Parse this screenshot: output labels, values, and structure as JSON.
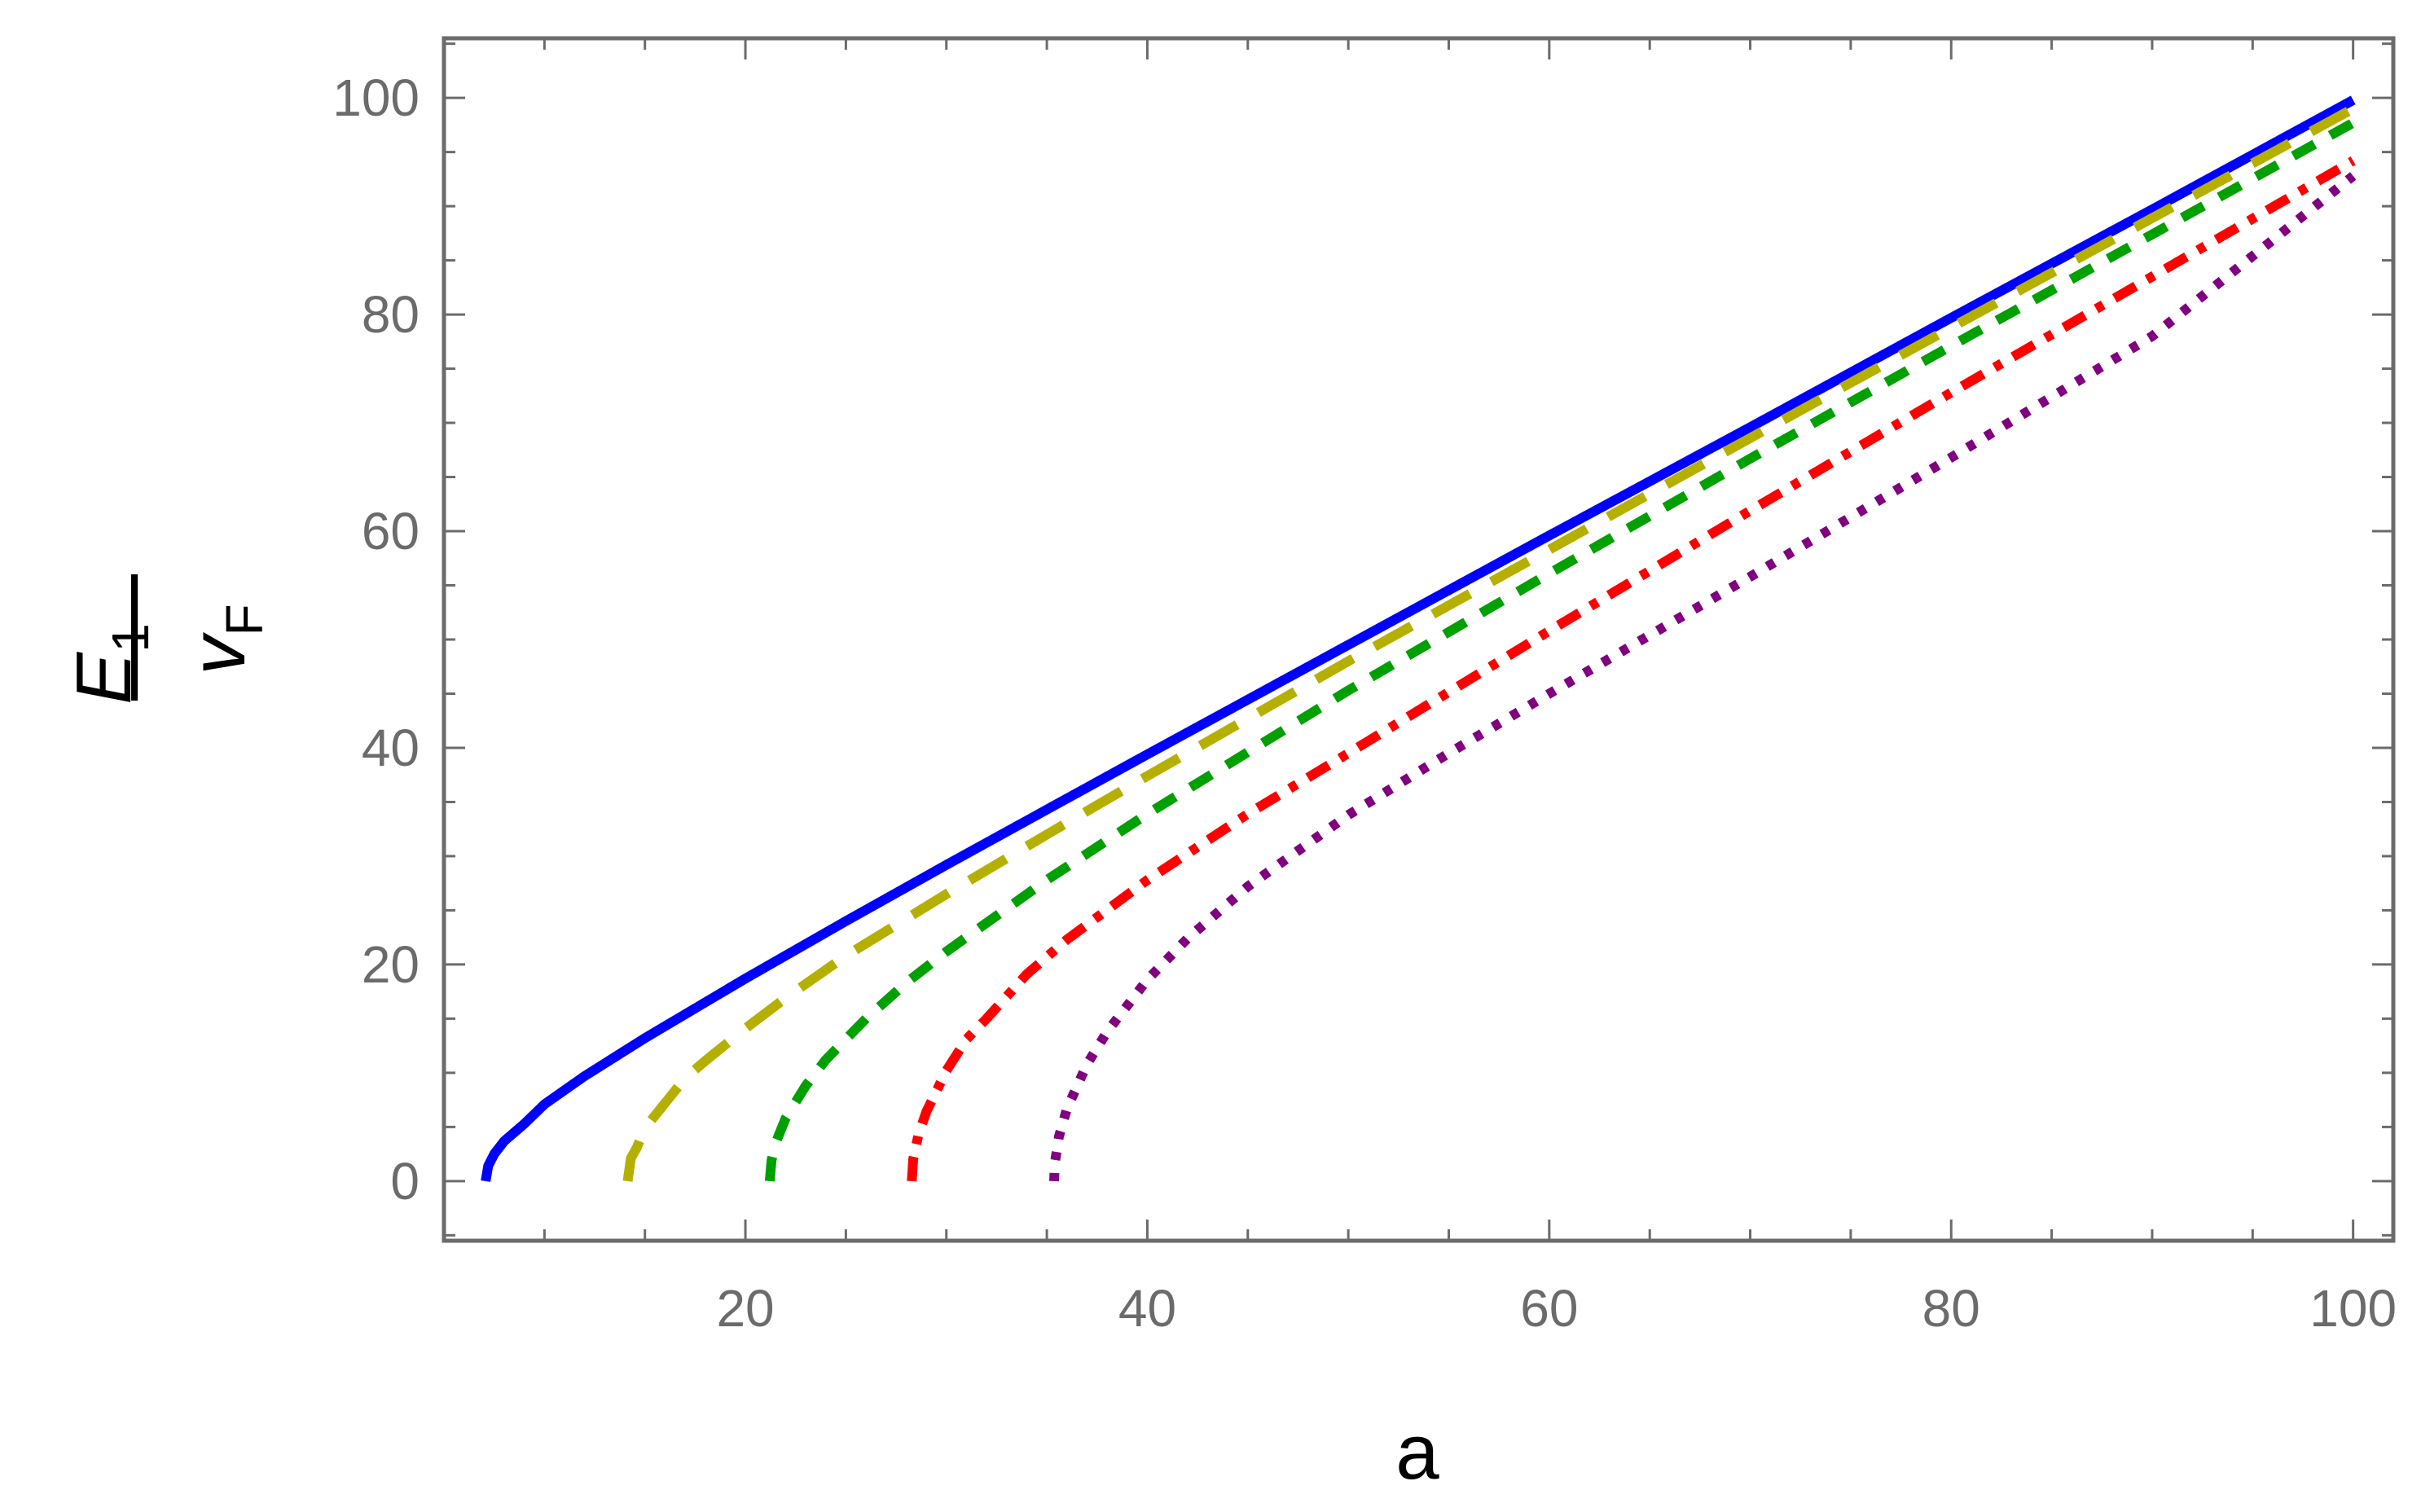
{
  "chart_data": {
    "type": "line",
    "title": "",
    "xlabel": "a",
    "ylabel": {
      "numerator_base": "E",
      "numerator_sub": "1",
      "denominator_base": "v",
      "denominator_sub": "F"
    },
    "xlim": [
      5,
      102
    ],
    "ylim": [
      -5.5,
      105.5
    ],
    "x_ticks": [
      "20",
      "40",
      "60",
      "80",
      "100"
    ],
    "y_ticks": [
      "0",
      "20",
      "40",
      "60",
      "80",
      "100"
    ],
    "x_tick_values": [
      20,
      40,
      60,
      80,
      100
    ],
    "y_tick_values": [
      0,
      20,
      40,
      60,
      80,
      100
    ],
    "grid": false,
    "frame": true,
    "legend": "none",
    "series": [
      {
        "color": "#0000ff",
        "style": "solid",
        "points": [
          [
            7.07,
            0
          ],
          [
            7.2,
            1.4
          ],
          [
            7.5,
            2.5
          ],
          [
            8,
            3.7
          ],
          [
            9,
            5.3
          ],
          [
            10,
            7.1
          ],
          [
            12,
            9.7
          ],
          [
            15,
            13.2
          ],
          [
            20,
            18.7
          ],
          [
            25,
            24.0
          ],
          [
            30,
            29.2
          ],
          [
            35,
            34.3
          ],
          [
            40,
            39.4
          ],
          [
            50,
            49.5
          ],
          [
            60,
            59.6
          ],
          [
            70,
            69.6
          ],
          [
            80,
            79.7
          ],
          [
            90,
            89.7
          ],
          [
            100,
            99.8
          ]
        ]
      },
      {
        "color": "#b5b000",
        "style": "long-dash",
        "points": [
          [
            14.14,
            0
          ],
          [
            14.3,
            2.1
          ],
          [
            14.6,
            3.1
          ],
          [
            15,
            4.9
          ],
          [
            16,
            7.2
          ],
          [
            17,
            9.5
          ],
          [
            18,
            11.1
          ],
          [
            20,
            14.1
          ],
          [
            22,
            16.9
          ],
          [
            25,
            20.8
          ],
          [
            30,
            26.5
          ],
          [
            35,
            32.0
          ],
          [
            40,
            37.4
          ],
          [
            50,
            48.0
          ],
          [
            60,
            58.3
          ],
          [
            70,
            68.6
          ],
          [
            80,
            78.8
          ],
          [
            90,
            88.9
          ],
          [
            100,
            99.0
          ]
        ]
      },
      {
        "color": "#00a000",
        "style": "dash",
        "points": [
          [
            21.21,
            0
          ],
          [
            21.3,
            1.9
          ],
          [
            21.5,
            3.5
          ],
          [
            22,
            5.8
          ],
          [
            23,
            8.8
          ],
          [
            24,
            11.2
          ],
          [
            26,
            15.0
          ],
          [
            28,
            18.3
          ],
          [
            30,
            21.2
          ],
          [
            35,
            27.8
          ],
          [
            40,
            33.9
          ],
          [
            45,
            39.6
          ],
          [
            50,
            45.3
          ],
          [
            60,
            56.1
          ],
          [
            70,
            66.7
          ],
          [
            80,
            77.1
          ],
          [
            90,
            87.4
          ],
          [
            100,
            97.7
          ]
        ]
      },
      {
        "color": "#ff0000",
        "style": "dash-dot",
        "points": [
          [
            28.28,
            0
          ],
          [
            28.35,
            2.0
          ],
          [
            28.6,
            4.2
          ],
          [
            29,
            6.4
          ],
          [
            30,
            10.2
          ],
          [
            31,
            13.1
          ],
          [
            32,
            15.0
          ],
          [
            34,
            19.1
          ],
          [
            36,
            22.3
          ],
          [
            40,
            27.8
          ],
          [
            45,
            33.9
          ],
          [
            50,
            39.5
          ],
          [
            60,
            50.8
          ],
          [
            70,
            61.9
          ],
          [
            80,
            72.8
          ],
          [
            90,
            83.5
          ],
          [
            100,
            94.2
          ]
        ]
      },
      {
        "color": "#800080",
        "style": "dot",
        "points": [
          [
            35.36,
            0
          ],
          [
            35.4,
            1.7
          ],
          [
            35.6,
            4.1
          ],
          [
            36,
            6.7
          ],
          [
            37,
            10.8
          ],
          [
            38,
            13.8
          ],
          [
            40,
            18.6
          ],
          [
            42,
            22.4
          ],
          [
            45,
            27.2
          ],
          [
            50,
            33.8
          ],
          [
            55,
            39.5
          ],
          [
            60,
            45.0
          ],
          [
            70,
            55.8
          ],
          [
            80,
            66.8
          ],
          [
            90,
            78.0
          ],
          [
            100,
            92.8
          ]
        ]
      }
    ]
  }
}
